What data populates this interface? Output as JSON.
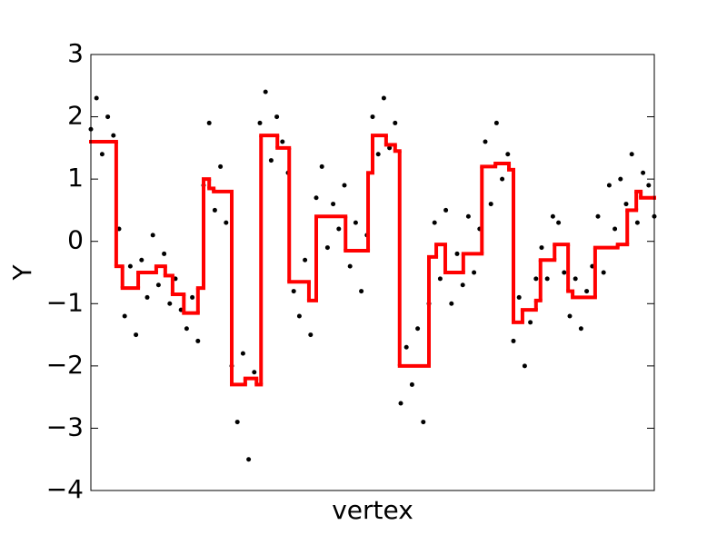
{
  "chart_data": {
    "type": "scatter",
    "xlabel": "vertex",
    "ylabel": "Y",
    "xlim": [
      0,
      1000
    ],
    "ylim": [
      -4,
      3
    ],
    "yticks": [
      {
        "value": -4,
        "label": "−4"
      },
      {
        "value": -3,
        "label": "−3"
      },
      {
        "value": -2,
        "label": "−2"
      },
      {
        "value": -1,
        "label": "−1"
      },
      0,
      1,
      2,
      3
    ],
    "series": [
      {
        "type": "scatter",
        "color": "#000000",
        "x": [
          0,
          10,
          20,
          30,
          40,
          50,
          60,
          70,
          80,
          90,
          100,
          110,
          120,
          130,
          140,
          150,
          160,
          170,
          180,
          190,
          200,
          210,
          220,
          230,
          240,
          250,
          260,
          270,
          280,
          290,
          300,
          310,
          320,
          330,
          340,
          350,
          360,
          370,
          380,
          390,
          400,
          410,
          420,
          430,
          440,
          450,
          460,
          470,
          480,
          490,
          500,
          510,
          520,
          530,
          540,
          550,
          560,
          570,
          580,
          590,
          600,
          610,
          620,
          630,
          640,
          650,
          660,
          670,
          680,
          690,
          700,
          710,
          720,
          730,
          740,
          750,
          760,
          770,
          780,
          790,
          800,
          810,
          820,
          830,
          840,
          850,
          860,
          870,
          880,
          890,
          900,
          910,
          920,
          930,
          940,
          950,
          960,
          970,
          980,
          990,
          1000
        ],
        "values": [
          1.8,
          2.3,
          1.4,
          2.0,
          1.7,
          0.2,
          -1.2,
          -0.4,
          -1.5,
          -0.3,
          -0.9,
          0.1,
          -0.7,
          -0.2,
          -1.0,
          -0.6,
          -1.1,
          -1.4,
          -0.9,
          -1.6,
          0.9,
          1.9,
          0.5,
          1.2,
          0.3,
          -2.0,
          -2.9,
          -1.8,
          -3.5,
          -2.1,
          1.9,
          2.4,
          1.3,
          2.0,
          1.6,
          1.1,
          -0.8,
          -1.2,
          -0.3,
          -1.5,
          0.7,
          1.2,
          -0.1,
          0.6,
          0.2,
          0.9,
          -0.4,
          0.3,
          -0.8,
          0.1,
          2.0,
          1.4,
          2.3,
          1.5,
          1.9,
          -2.6,
          -1.7,
          -2.3,
          -1.4,
          -2.9,
          -1.0,
          0.3,
          -0.6,
          0.5,
          -1.0,
          -0.2,
          -0.7,
          0.4,
          -0.5,
          0.2,
          1.6,
          0.6,
          1.9,
          1.0,
          1.4,
          -1.6,
          -0.9,
          -2.0,
          -1.3,
          -0.6,
          -0.1,
          -0.6,
          0.4,
          0.3,
          -0.5,
          -1.2,
          -0.6,
          -1.4,
          -0.8,
          -0.4,
          0.4,
          -0.5,
          0.9,
          0.2,
          1.0,
          0.6,
          1.4,
          0.3,
          1.1,
          0.9,
          0.4
        ]
      },
      {
        "type": "line",
        "drawstyle": "steps-post",
        "color": "#ff0000",
        "x": [
          0,
          45,
          56,
          84,
          116,
          132,
          145,
          165,
          190,
          200,
          210,
          218,
          250,
          274,
          294,
          302,
          331,
          352,
          387,
          400,
          452,
          492,
          500,
          524,
          540,
          548,
          600,
          613,
          629,
          661,
          694,
          718,
          742,
          750,
          766,
          790,
          798,
          823,
          847,
          855,
          895,
          935,
          952,
          968,
          976,
          1000
        ],
        "values": [
          1.6,
          -0.4,
          -0.75,
          -0.5,
          -0.4,
          -0.55,
          -0.85,
          -1.15,
          -0.75,
          1.0,
          0.85,
          0.8,
          -2.3,
          -2.2,
          -2.3,
          1.7,
          1.5,
          -0.65,
          -0.95,
          0.4,
          -0.15,
          1.1,
          1.7,
          1.55,
          1.45,
          -2.0,
          -0.25,
          -0.05,
          -0.5,
          -0.2,
          1.2,
          1.25,
          1.15,
          -1.3,
          -1.1,
          -0.95,
          -0.3,
          -0.05,
          -0.8,
          -0.9,
          -0.1,
          -0.05,
          0.5,
          0.8,
          0.7,
          0.7
        ]
      }
    ]
  }
}
